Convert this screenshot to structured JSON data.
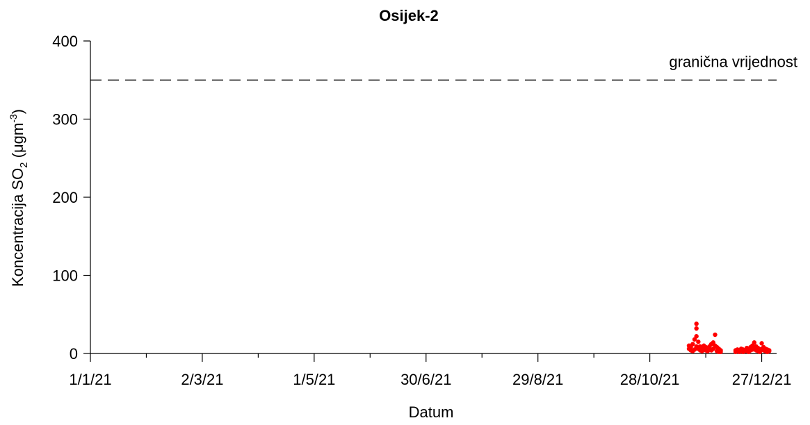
{
  "chart_data": {
    "type": "scatter",
    "title": "Osijek-2",
    "xlabel": "Datum",
    "ylabel_main": "Koncentracija SO",
    "ylabel_sub": "2",
    "ylabel_unit_start": " (μgm",
    "ylabel_unit_sup": "-3",
    "ylabel_unit_end": ")",
    "ylim": [
      0,
      400
    ],
    "yticks": [
      0,
      100,
      200,
      300,
      400
    ],
    "xlim": [
      "2021-01-01",
      "2022-01-04"
    ],
    "xticks": [
      {
        "date": "2021-01-01",
        "label": "1/1/21"
      },
      {
        "date": "2021-03-02",
        "label": "2/3/21"
      },
      {
        "date": "2021-05-01",
        "label": "1/5/21"
      },
      {
        "date": "2021-06-30",
        "label": "30/6/21"
      },
      {
        "date": "2021-08-29",
        "label": "29/8/21"
      },
      {
        "date": "2021-10-28",
        "label": "28/10/21"
      },
      {
        "date": "2021-12-27",
        "label": "27/12/21"
      }
    ],
    "limit_line": {
      "value": 350,
      "label": "granična vrijednost",
      "style": "dashed"
    },
    "series": [
      {
        "color": "#ff0000",
        "points": [
          {
            "x": "2021-11-18",
            "y": 10
          },
          {
            "x": "2021-11-18",
            "y": 6
          },
          {
            "x": "2021-11-19",
            "y": 8
          },
          {
            "x": "2021-11-19",
            "y": 4
          },
          {
            "x": "2021-11-20",
            "y": 12
          },
          {
            "x": "2021-11-20",
            "y": 3
          },
          {
            "x": "2021-11-21",
            "y": 18
          },
          {
            "x": "2021-11-21",
            "y": 5
          },
          {
            "x": "2021-11-22",
            "y": 38
          },
          {
            "x": "2021-11-22",
            "y": 32
          },
          {
            "x": "2021-11-22",
            "y": 22
          },
          {
            "x": "2021-11-22",
            "y": 9
          },
          {
            "x": "2021-11-23",
            "y": 15
          },
          {
            "x": "2021-11-23",
            "y": 6
          },
          {
            "x": "2021-11-24",
            "y": 9
          },
          {
            "x": "2021-11-24",
            "y": 4
          },
          {
            "x": "2021-11-25",
            "y": 7
          },
          {
            "x": "2021-11-25",
            "y": 3
          },
          {
            "x": "2021-11-26",
            "y": 10
          },
          {
            "x": "2021-11-26",
            "y": 5
          },
          {
            "x": "2021-11-27",
            "y": 8
          },
          {
            "x": "2021-11-27",
            "y": 4
          },
          {
            "x": "2021-11-28",
            "y": 6
          },
          {
            "x": "2021-11-28",
            "y": 3
          },
          {
            "x": "2021-11-29",
            "y": 9
          },
          {
            "x": "2021-11-29",
            "y": 5
          },
          {
            "x": "2021-11-30",
            "y": 12
          },
          {
            "x": "2021-11-30",
            "y": 4
          },
          {
            "x": "2021-12-01",
            "y": 14
          },
          {
            "x": "2021-12-01",
            "y": 6
          },
          {
            "x": "2021-12-02",
            "y": 24
          },
          {
            "x": "2021-12-02",
            "y": 10
          },
          {
            "x": "2021-12-03",
            "y": 8
          },
          {
            "x": "2021-12-03",
            "y": 3
          },
          {
            "x": "2021-12-04",
            "y": 6
          },
          {
            "x": "2021-12-04",
            "y": 2
          },
          {
            "x": "2021-12-05",
            "y": 4
          },
          {
            "x": "2021-12-05",
            "y": 2
          },
          {
            "x": "2021-12-13",
            "y": 4
          },
          {
            "x": "2021-12-13",
            "y": 2
          },
          {
            "x": "2021-12-14",
            "y": 5
          },
          {
            "x": "2021-12-14",
            "y": 3
          },
          {
            "x": "2021-12-15",
            "y": 4
          },
          {
            "x": "2021-12-15",
            "y": 2
          },
          {
            "x": "2021-12-16",
            "y": 6
          },
          {
            "x": "2021-12-16",
            "y": 3
          },
          {
            "x": "2021-12-17",
            "y": 5
          },
          {
            "x": "2021-12-17",
            "y": 2
          },
          {
            "x": "2021-12-18",
            "y": 4
          },
          {
            "x": "2021-12-18",
            "y": 3
          },
          {
            "x": "2021-12-19",
            "y": 7
          },
          {
            "x": "2021-12-19",
            "y": 3
          },
          {
            "x": "2021-12-20",
            "y": 6
          },
          {
            "x": "2021-12-20",
            "y": 2
          },
          {
            "x": "2021-12-21",
            "y": 8
          },
          {
            "x": "2021-12-21",
            "y": 4
          },
          {
            "x": "2021-12-22",
            "y": 10
          },
          {
            "x": "2021-12-22",
            "y": 5
          },
          {
            "x": "2021-12-23",
            "y": 14
          },
          {
            "x": "2021-12-23",
            "y": 6
          },
          {
            "x": "2021-12-24",
            "y": 9
          },
          {
            "x": "2021-12-24",
            "y": 4
          },
          {
            "x": "2021-12-25",
            "y": 7
          },
          {
            "x": "2021-12-25",
            "y": 3
          },
          {
            "x": "2021-12-26",
            "y": 5
          },
          {
            "x": "2021-12-26",
            "y": 2
          },
          {
            "x": "2021-12-27",
            "y": 13
          },
          {
            "x": "2021-12-27",
            "y": 6
          },
          {
            "x": "2021-12-28",
            "y": 8
          },
          {
            "x": "2021-12-28",
            "y": 4
          },
          {
            "x": "2021-12-29",
            "y": 6
          },
          {
            "x": "2021-12-29",
            "y": 3
          },
          {
            "x": "2021-12-30",
            "y": 5
          },
          {
            "x": "2021-12-30",
            "y": 2
          },
          {
            "x": "2021-12-31",
            "y": 4
          },
          {
            "x": "2021-12-31",
            "y": 3
          }
        ]
      }
    ]
  }
}
